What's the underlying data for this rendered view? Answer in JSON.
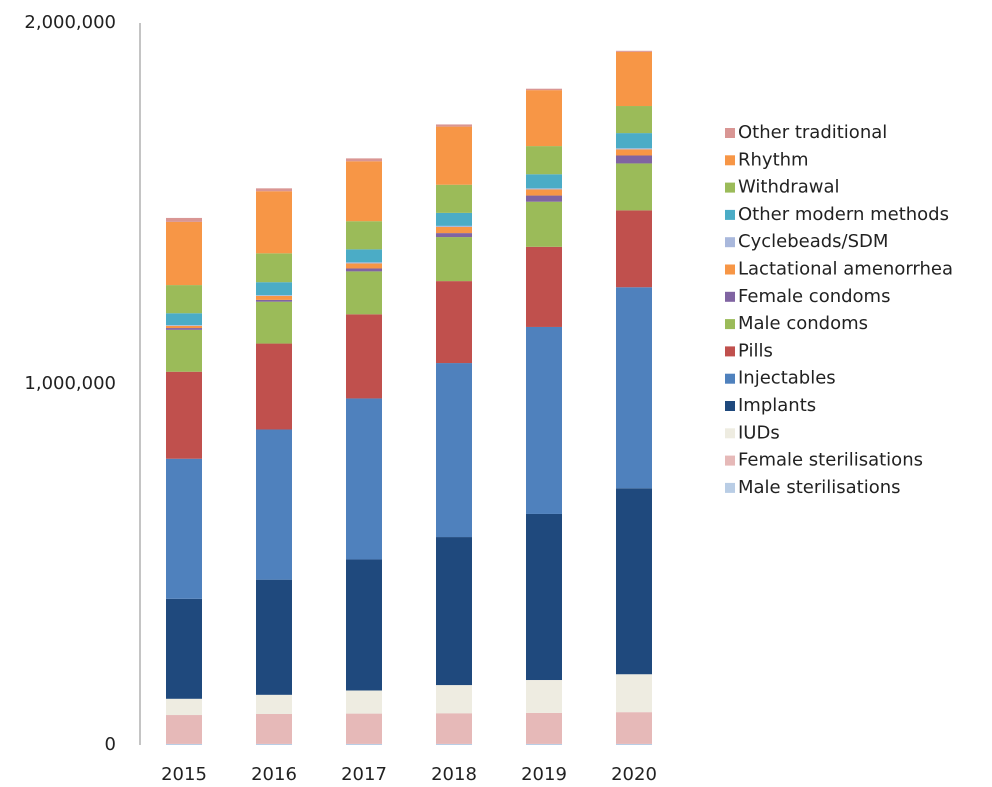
{
  "chart_data": {
    "type": "stacked_bar",
    "categories": [
      "2015",
      "2016",
      "2017",
      "2018",
      "2019",
      "2020"
    ],
    "series": [
      {
        "name": "Male sterilisations",
        "color": "#b9cde5",
        "values": [
          3000,
          3000,
          3000,
          3000,
          3000,
          3000
        ]
      },
      {
        "name": "Female sterilisations",
        "color": "#e6b9b8",
        "values": [
          80000,
          83000,
          84000,
          85000,
          86000,
          88000
        ]
      },
      {
        "name": "IUDs",
        "color": "#eeece1",
        "values": [
          45000,
          53000,
          64000,
          78000,
          91000,
          105000
        ]
      },
      {
        "name": "Implants",
        "color": "#1f497d",
        "values": [
          277000,
          319000,
          363000,
          410000,
          460000,
          515000
        ]
      },
      {
        "name": "Injectables",
        "color": "#4f81bd",
        "values": [
          388000,
          416000,
          446000,
          482000,
          518000,
          557000
        ]
      },
      {
        "name": "Pills",
        "color": "#c0504d",
        "values": [
          241000,
          238000,
          233000,
          227000,
          222000,
          213000
        ]
      },
      {
        "name": "Male condoms",
        "color": "#9bbb59",
        "values": [
          116000,
          116000,
          119000,
          122000,
          125000,
          130000
        ]
      },
      {
        "name": "Female condoms",
        "color": "#8064a2",
        "values": [
          5000,
          5000,
          8000,
          11000,
          17000,
          22000
        ]
      },
      {
        "name": "Lactational amenorrhea",
        "color": "#f79646",
        "values": [
          6000,
          11000,
          14000,
          17000,
          17000,
          17000
        ]
      },
      {
        "name": "Cyclebeads/SDM",
        "color": "#a9b8dc",
        "values": [
          2000,
          2000,
          3000,
          3000,
          3000,
          3000
        ]
      },
      {
        "name": "Other modern methods",
        "color": "#4bacc6",
        "values": [
          33000,
          36000,
          36000,
          36000,
          39000,
          42000
        ]
      },
      {
        "name": "Withdrawal",
        "color": "#9bbb59",
        "values": [
          78000,
          80000,
          78000,
          78000,
          78000,
          75000
        ]
      },
      {
        "name": "Rhythm",
        "color": "#f79646",
        "values": [
          175000,
          172000,
          166000,
          161000,
          155000,
          150000
        ]
      },
      {
        "name": "Other traditional",
        "color": "#d99694",
        "values": [
          11000,
          8000,
          8000,
          6000,
          4000,
          3000
        ]
      }
    ],
    "ylim": [
      0,
      2000000
    ],
    "yticks": [
      0,
      {
        "value": 1000000,
        "label": "1,000,000"
      },
      {
        "value": 2000000,
        "label": "2,000,000"
      }
    ]
  }
}
